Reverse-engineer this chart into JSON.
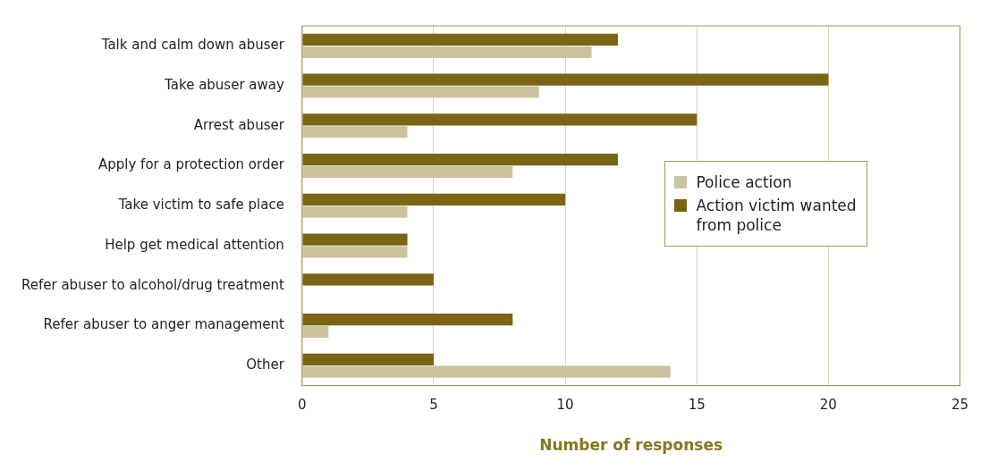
{
  "chart_data": {
    "type": "bar",
    "orientation": "horizontal",
    "xlabel": "Number of responses",
    "categories": [
      "Talk and calm down abuser",
      "Take abuser away",
      "Arrest abuser",
      "Apply for a protection order",
      "Take victim to safe place",
      "Help get medical attention",
      "Refer abuser to alcohol/drug treatment",
      "Refer abuser to anger management",
      "Other"
    ],
    "series": [
      {
        "name": "Action victim wanted from police",
        "color": "#7a6514",
        "values": [
          12,
          20,
          15,
          12,
          10,
          4,
          5,
          8,
          5
        ]
      },
      {
        "name": "Police action",
        "color": "#cbc39f",
        "values": [
          11,
          9,
          4,
          8,
          4,
          4,
          0,
          1,
          14
        ]
      }
    ],
    "xlim": [
      0,
      25
    ],
    "xticks": [
      0,
      5,
      10,
      15,
      20,
      25
    ],
    "grid": "x",
    "legend": "right"
  }
}
